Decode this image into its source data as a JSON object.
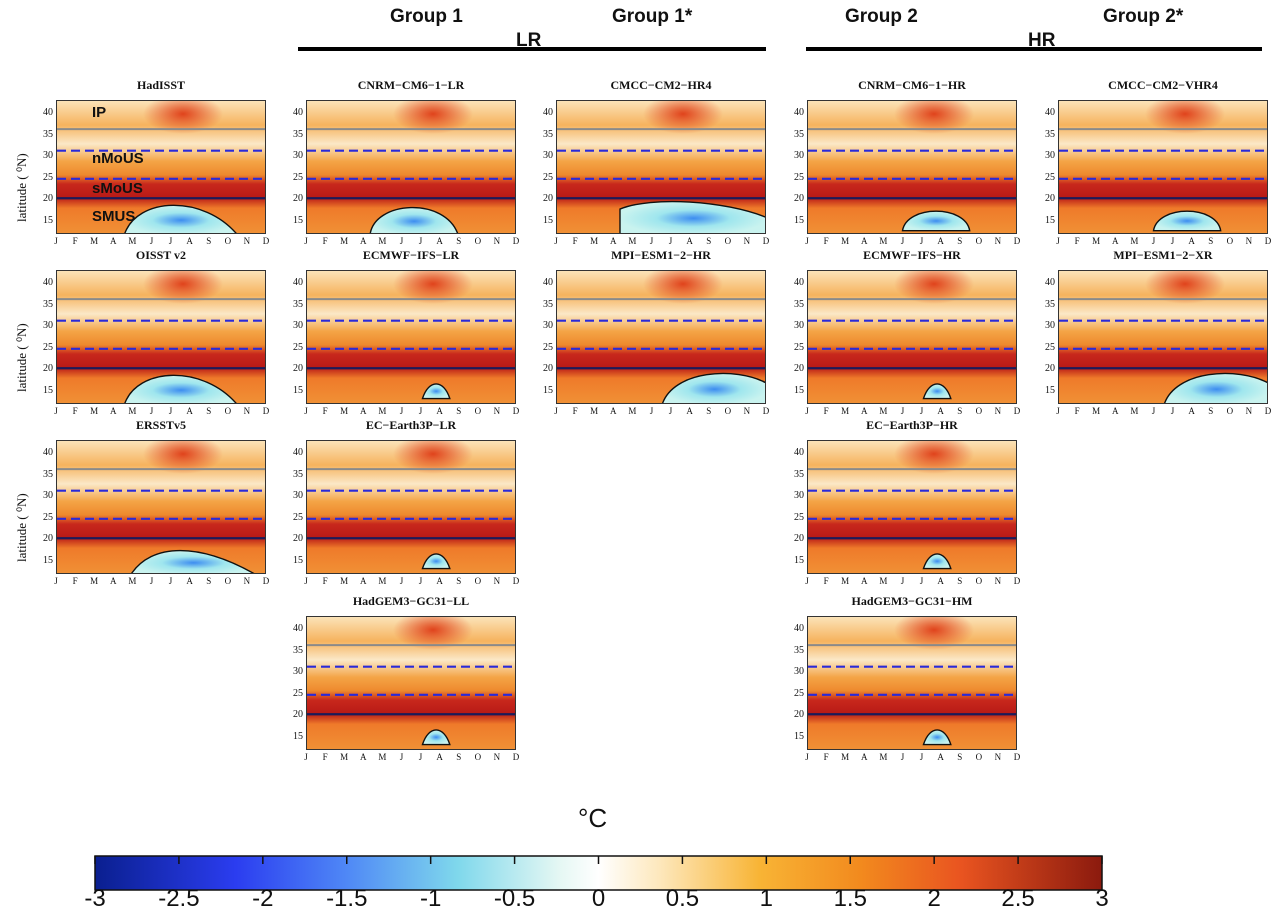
{
  "groups": {
    "g1": "Group 1",
    "g1s": "Group 1*",
    "g2": "Group 2",
    "g2s": "Group 2*",
    "lr": "LR",
    "hr": "HR"
  },
  "ylabel": "latitude ( ⁰N)",
  "regions": [
    "IP",
    "nMoUS",
    "sMoUS",
    "SMUS"
  ],
  "chart_data": {
    "type": "heatmap",
    "x": [
      "J",
      "F",
      "M",
      "A",
      "M",
      "J",
      "J",
      "A",
      "S",
      "O",
      "N",
      "D"
    ],
    "y_ticks": [
      15,
      20,
      25,
      30,
      35,
      40
    ],
    "ylim": [
      12,
      43
    ],
    "panels": [
      {
        "name": "HadISST",
        "title": "HadISST"
      },
      {
        "name": "OISST",
        "title": "OISST v2"
      },
      {
        "name": "ERSST",
        "title": "ERSSTv5"
      },
      {
        "name": "CNRM-LR",
        "title": "CNRM−CM6−1−LR"
      },
      {
        "name": "ECMWF-LR",
        "title": "ECMWF−IFS−LR"
      },
      {
        "name": "ECE-LR",
        "title": "EC−Earth3P−LR"
      },
      {
        "name": "HadGEM-LL",
        "title": "HadGEM3−GC31−LL"
      },
      {
        "name": "CMCC-HR4",
        "title": "CMCC−CM2−HR4"
      },
      {
        "name": "MPI-HR",
        "title": "MPI−ESM1−2−HR"
      },
      {
        "name": "CNRM-HR",
        "title": "CNRM−CM6−1−HR"
      },
      {
        "name": "ECMWF-HR",
        "title": "ECMWF−IFS−HR"
      },
      {
        "name": "ECE-HR",
        "title": "EC−Earth3P−HR"
      },
      {
        "name": "HadGEM-HM",
        "title": "HadGEM3−GC31−HM"
      },
      {
        "name": "CMCC-VHR4",
        "title": "CMCC−CM2−VHR4"
      },
      {
        "name": "MPI-XR",
        "title": "MPI−ESM1−2−XR"
      }
    ],
    "region_boundaries_solid": [
      20.5,
      36.5
    ],
    "region_boundaries_dashed": [
      25,
      31.5
    ],
    "colorbar": {
      "title": "°C",
      "ticks": [
        "-3",
        "-2.5",
        "-2",
        "-1.5",
        "-1",
        "-0.5",
        "0",
        "0.5",
        "1",
        "1.5",
        "2",
        "2.5",
        "3"
      ],
      "range": [
        -3,
        3
      ]
    }
  }
}
